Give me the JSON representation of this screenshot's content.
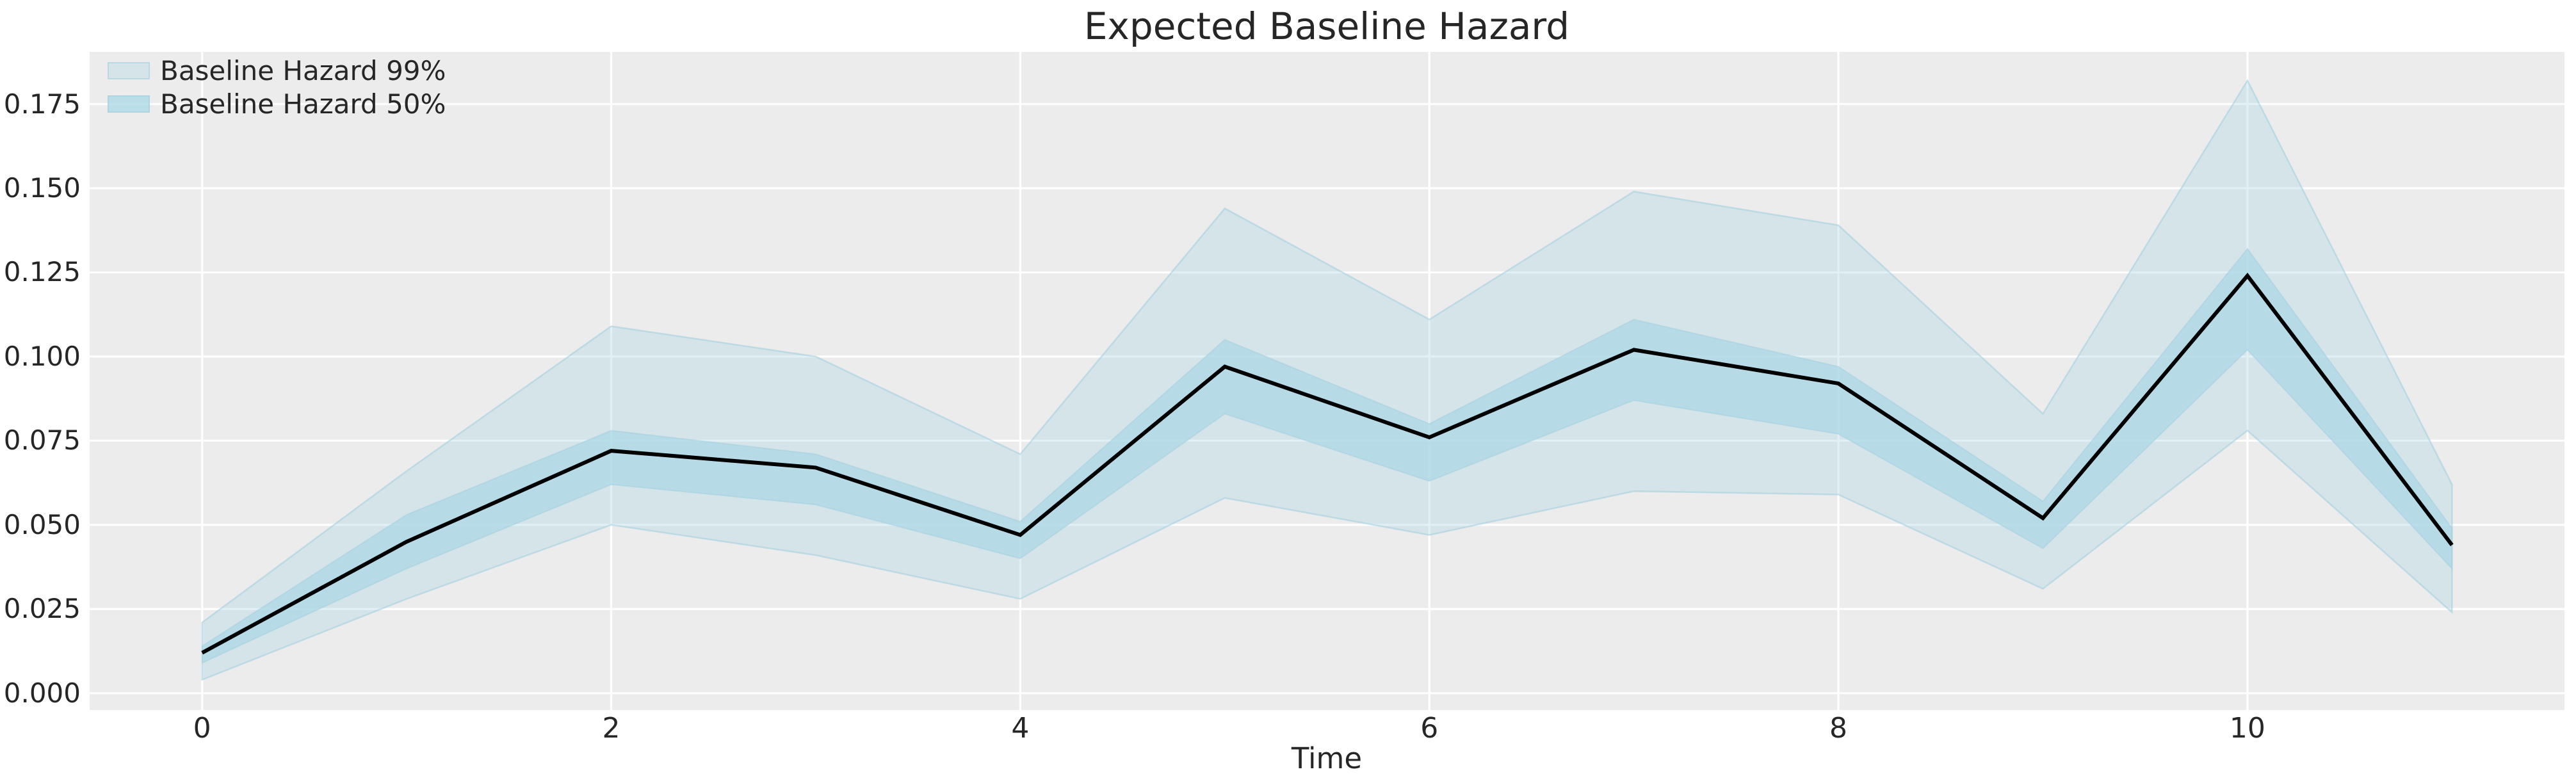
{
  "title": "Expected Baseline Hazard",
  "xlabel": "Time",
  "legend": [
    {
      "label": "Baseline Hazard 99%",
      "band": "band99"
    },
    {
      "label": "Baseline Hazard 50%",
      "band": "band50"
    }
  ],
  "colors": {
    "accent_lightblue": "#add8e6",
    "band_99_alpha": 0.38,
    "band_50_alpha": 0.78,
    "band_edge": "rgba(160,205,222,0.55)",
    "median_line": "#000000",
    "plot_background": "#ececec",
    "gridline": "#ffffff",
    "text": "#262626"
  },
  "chart_data": {
    "type": "line",
    "title": "Expected Baseline Hazard",
    "xlabel": "Time",
    "ylabel": "",
    "grid": true,
    "legend_position": "upper left",
    "x": [
      0,
      1,
      2,
      3,
      4,
      5,
      6,
      7,
      8,
      9,
      10,
      11
    ],
    "series": [
      {
        "name": "Expected baseline hazard (median line)",
        "type": "line",
        "values": [
          0.012,
          0.045,
          0.072,
          0.067,
          0.047,
          0.097,
          0.076,
          0.102,
          0.092,
          0.052,
          0.124,
          0.044
        ]
      },
      {
        "name": "Baseline Hazard 50%",
        "type": "band",
        "lower": [
          0.009,
          0.037,
          0.062,
          0.056,
          0.04,
          0.083,
          0.063,
          0.087,
          0.077,
          0.043,
          0.102,
          0.037
        ],
        "upper": [
          0.014,
          0.053,
          0.078,
          0.071,
          0.051,
          0.105,
          0.08,
          0.111,
          0.097,
          0.057,
          0.132,
          0.049
        ]
      },
      {
        "name": "Baseline Hazard 99%",
        "type": "band",
        "lower": [
          0.004,
          0.028,
          0.05,
          0.041,
          0.028,
          0.058,
          0.047,
          0.06,
          0.059,
          0.031,
          0.078,
          0.024
        ],
        "upper": [
          0.021,
          0.066,
          0.109,
          0.1,
          0.071,
          0.144,
          0.111,
          0.149,
          0.139,
          0.083,
          0.182,
          0.062
        ]
      }
    ],
    "xlim": [
      -0.55,
      11.55
    ],
    "ylim": [
      -0.005,
      0.1905
    ],
    "x_ticks": [
      0,
      2,
      4,
      6,
      8,
      10
    ],
    "x_tick_labels": [
      "0",
      "2",
      "4",
      "6",
      "8",
      "10"
    ],
    "y_ticks": [
      0.0,
      0.025,
      0.05,
      0.075,
      0.1,
      0.125,
      0.15,
      0.175
    ],
    "y_tick_labels": [
      "0.000",
      "0.025",
      "0.050",
      "0.075",
      "0.100",
      "0.125",
      "0.150",
      "0.175"
    ]
  }
}
